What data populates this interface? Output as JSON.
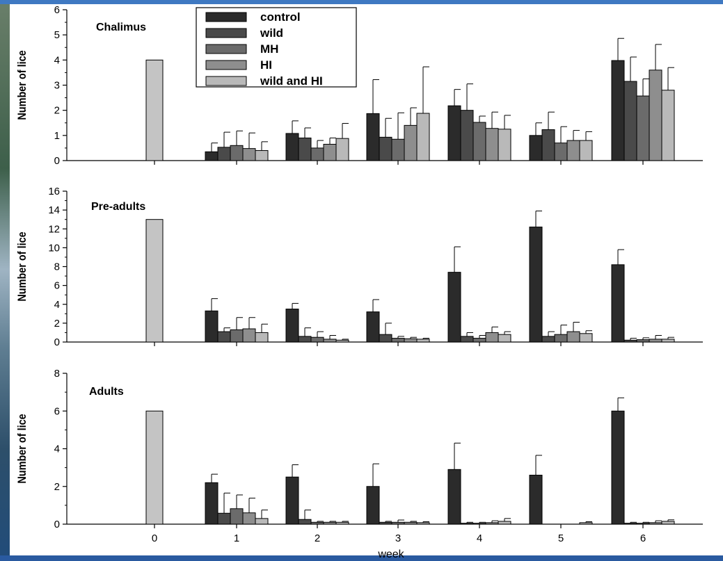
{
  "chart_data": {
    "type": "bar",
    "xlabel": "week",
    "categories": [
      "0",
      "1",
      "2",
      "3",
      "4",
      "5",
      "6"
    ],
    "legend": {
      "placement": "top-left",
      "entries": [
        {
          "name": "control",
          "color": "#2b2b2b"
        },
        {
          "name": "wild",
          "color": "#4a4a4a"
        },
        {
          "name": "MH",
          "color": "#6b6b6b"
        },
        {
          "name": "HI",
          "color": "#8e8e8e"
        },
        {
          "name": "wild and HI",
          "color": "#b9b9b9"
        }
      ]
    },
    "panels": [
      {
        "title": "Chalimus",
        "ylabel": "Number of lice",
        "ylim": [
          0,
          6
        ],
        "yticks": [
          0,
          1,
          2,
          3,
          4,
          5,
          6
        ],
        "week0": {
          "value": 4.0,
          "color": "#c4c4c4"
        },
        "series": [
          {
            "name": "control",
            "values": [
              0.35,
              1.08,
              1.87,
              2.18,
              1.0,
              3.98
            ],
            "errors": [
              0.35,
              0.5,
              1.35,
              0.65,
              0.5,
              0.88
            ]
          },
          {
            "name": "wild",
            "values": [
              0.53,
              0.9,
              0.93,
              2.0,
              1.23,
              3.15
            ],
            "errors": [
              0.6,
              0.4,
              0.75,
              1.05,
              0.7,
              0.97
            ]
          },
          {
            "name": "MH",
            "values": [
              0.6,
              0.5,
              0.85,
              1.52,
              0.7,
              2.57
            ],
            "errors": [
              0.58,
              0.3,
              1.05,
              0.25,
              0.65,
              0.68
            ]
          },
          {
            "name": "HI",
            "values": [
              0.48,
              0.65,
              1.4,
              1.28,
              0.8,
              3.6
            ],
            "errors": [
              0.62,
              0.25,
              0.7,
              0.65,
              0.4,
              1.02
            ]
          },
          {
            "name": "wild and HI",
            "values": [
              0.4,
              0.88,
              1.88,
              1.25,
              0.8,
              2.8
            ],
            "errors": [
              0.35,
              0.6,
              1.85,
              0.55,
              0.35,
              0.9
            ]
          }
        ]
      },
      {
        "title": "Pre-adults",
        "ylabel": "Number of lice",
        "ylim": [
          0,
          16
        ],
        "yticks": [
          0,
          2,
          4,
          6,
          8,
          10,
          12,
          14,
          16
        ],
        "week0": {
          "value": 13.0,
          "color": "#c4c4c4"
        },
        "series": [
          {
            "name": "control",
            "values": [
              3.3,
              3.5,
              3.2,
              7.4,
              12.2,
              8.2
            ],
            "errors": [
              1.3,
              0.6,
              1.3,
              2.7,
              1.7,
              1.6
            ]
          },
          {
            "name": "wild",
            "values": [
              1.1,
              0.6,
              0.8,
              0.6,
              0.6,
              0.2
            ],
            "errors": [
              0.4,
              0.9,
              1.2,
              0.4,
              0.5,
              0.2
            ]
          },
          {
            "name": "MH",
            "values": [
              1.3,
              0.5,
              0.4,
              0.4,
              0.8,
              0.25
            ],
            "errors": [
              1.3,
              0.6,
              0.2,
              0.3,
              1.0,
              0.2
            ]
          },
          {
            "name": "HI",
            "values": [
              1.4,
              0.3,
              0.35,
              1.0,
              1.1,
              0.3
            ],
            "errors": [
              1.2,
              0.4,
              0.15,
              0.6,
              1.0,
              0.4
            ]
          },
          {
            "name": "wild and HI",
            "values": [
              1.0,
              0.2,
              0.3,
              0.8,
              0.9,
              0.3
            ],
            "errors": [
              0.9,
              0.1,
              0.1,
              0.3,
              0.3,
              0.2
            ]
          }
        ]
      },
      {
        "title": "Adults",
        "ylabel": "Number of lice",
        "ylim": [
          0,
          8
        ],
        "yticks": [
          0,
          2,
          4,
          6,
          8
        ],
        "week0": {
          "value": 6.0,
          "color": "#c4c4c4"
        },
        "series": [
          {
            "name": "control",
            "values": [
              2.2,
              2.5,
              2.0,
              2.9,
              2.6,
              6.0
            ],
            "errors": [
              0.45,
              0.65,
              1.2,
              1.4,
              1.05,
              0.7
            ]
          },
          {
            "name": "wild",
            "values": [
              0.58,
              0.25,
              0.1,
              0.05,
              0.0,
              0.05
            ],
            "errors": [
              1.07,
              0.5,
              0.05,
              0.05,
              0.0,
              0.05
            ]
          },
          {
            "name": "MH",
            "values": [
              0.82,
              0.1,
              0.1,
              0.05,
              0.0,
              0.05
            ],
            "errors": [
              0.73,
              0.05,
              0.12,
              0.05,
              0.0,
              0.05
            ]
          },
          {
            "name": "HI",
            "values": [
              0.6,
              0.1,
              0.1,
              0.08,
              0.0,
              0.08
            ],
            "errors": [
              0.78,
              0.05,
              0.05,
              0.1,
              0.0,
              0.1
            ]
          },
          {
            "name": "wild and HI",
            "values": [
              0.3,
              0.1,
              0.08,
              0.15,
              0.08,
              0.15
            ],
            "errors": [
              0.45,
              0.05,
              0.05,
              0.15,
              0.05,
              0.08
            ]
          }
        ]
      }
    ]
  }
}
